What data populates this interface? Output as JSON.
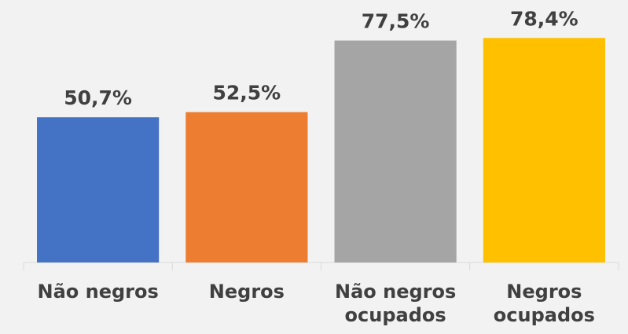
{
  "chart_data": {
    "type": "bar",
    "categories": [
      "Não negros",
      "Negros",
      "Não negros ocupados",
      "Negros ocupados"
    ],
    "values": [
      50.7,
      52.5,
      77.5,
      78.4
    ],
    "value_labels": [
      "50,7%",
      "52,5%",
      "77,5%",
      "78,4%"
    ],
    "colors": [
      "#4472c4",
      "#ed7d31",
      "#a5a5a5",
      "#ffc000"
    ],
    "ylim": [
      0,
      90
    ]
  }
}
